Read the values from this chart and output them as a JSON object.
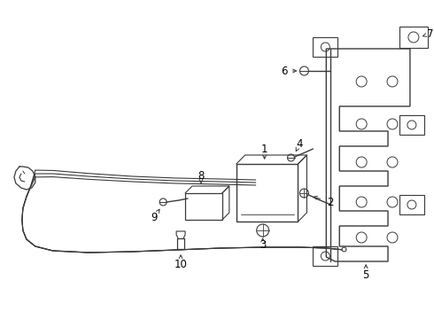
{
  "bg_color": "#ffffff",
  "line_color": "#3a3a3a",
  "text_color": "#000000",
  "figsize": [
    4.9,
    3.6
  ],
  "dpi": 100
}
